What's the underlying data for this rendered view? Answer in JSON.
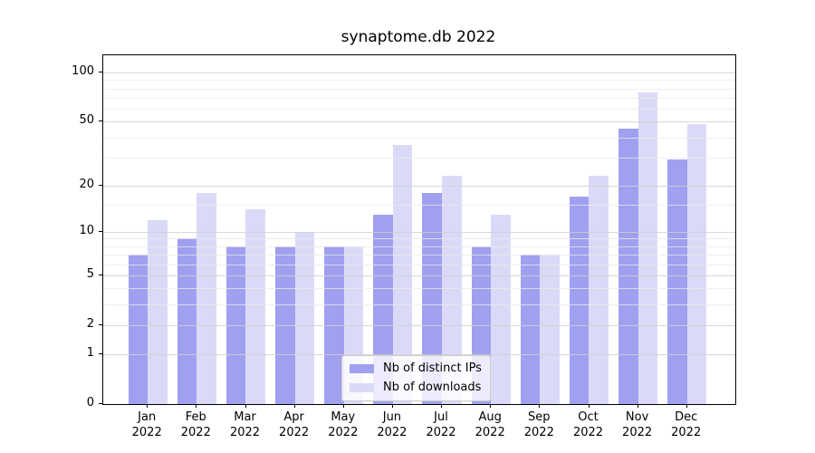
{
  "title": "synaptome.db 2022",
  "chart_data": {
    "type": "bar",
    "title": "synaptome.db 2022",
    "categories": [
      "Jan",
      "Feb",
      "Mar",
      "Apr",
      "May",
      "Jun",
      "Jul",
      "Aug",
      "Sep",
      "Oct",
      "Nov",
      "Dec"
    ],
    "year": "2022",
    "series": [
      {
        "name": "Nb of distinct IPs",
        "color": "#a0a0f0",
        "values": [
          7,
          9,
          8,
          8,
          8,
          13,
          18,
          8,
          7,
          17,
          45,
          29
        ]
      },
      {
        "name": "Nb of downloads",
        "color": "#dadaf8",
        "values": [
          12,
          18,
          14,
          10,
          8,
          36,
          23,
          13,
          7,
          23,
          76,
          48
        ]
      }
    ],
    "xlabel": "",
    "ylabel": "",
    "y_scale": "log1p",
    "y_major_ticks": [
      0,
      1,
      2,
      5,
      10,
      20,
      50,
      100
    ],
    "y_minor_ticks": [
      3,
      4,
      6,
      7,
      8,
      9,
      15,
      30,
      40,
      60,
      70,
      80,
      90
    ],
    "ylim": [
      0,
      127
    ],
    "grid": "horizontal-only",
    "legend_position": "lower-center"
  },
  "colors": {
    "background": "#ffffff",
    "axis": "#000000",
    "grid_major": "#d0d0d0",
    "grid_minor": "#e9e9e9",
    "legend_border": "#cccccc",
    "bar_distinct_ips": "#a0a0f0",
    "bar_downloads": "#dadaf8"
  }
}
